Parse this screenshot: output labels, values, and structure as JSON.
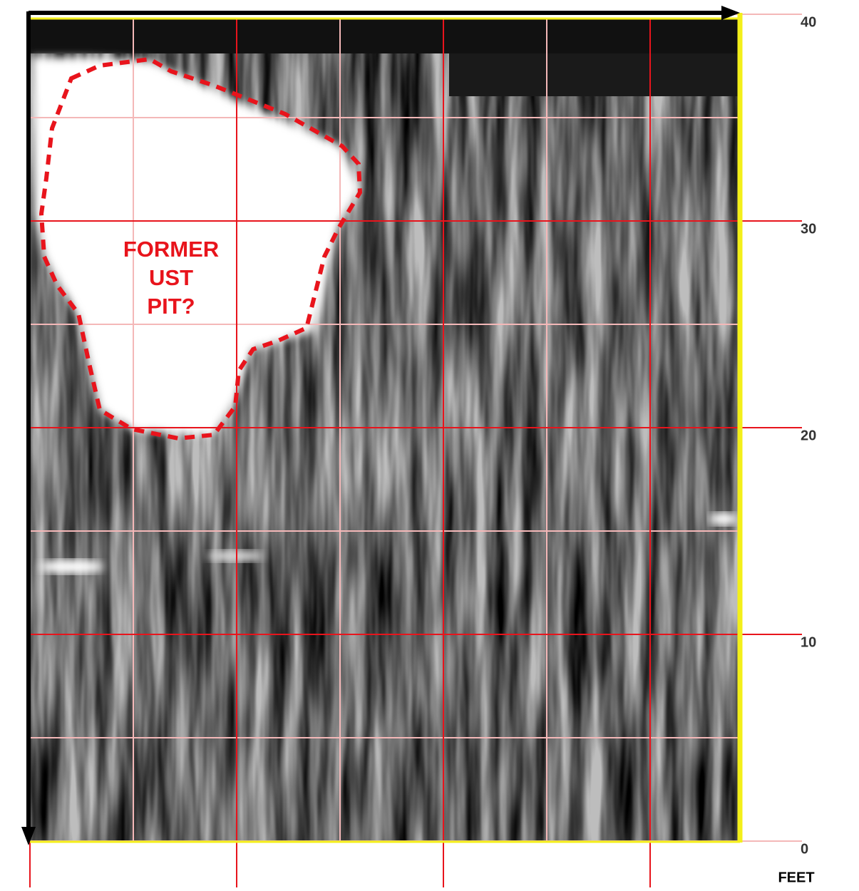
{
  "chart_data": {
    "type": "image",
    "annotation": [
      "FORMER",
      "UST",
      "PIT?"
    ],
    "ylabel": "FEET",
    "ylim": [
      0,
      40
    ],
    "yticks": [
      0,
      10,
      20,
      30,
      40
    ],
    "grid": true
  }
}
